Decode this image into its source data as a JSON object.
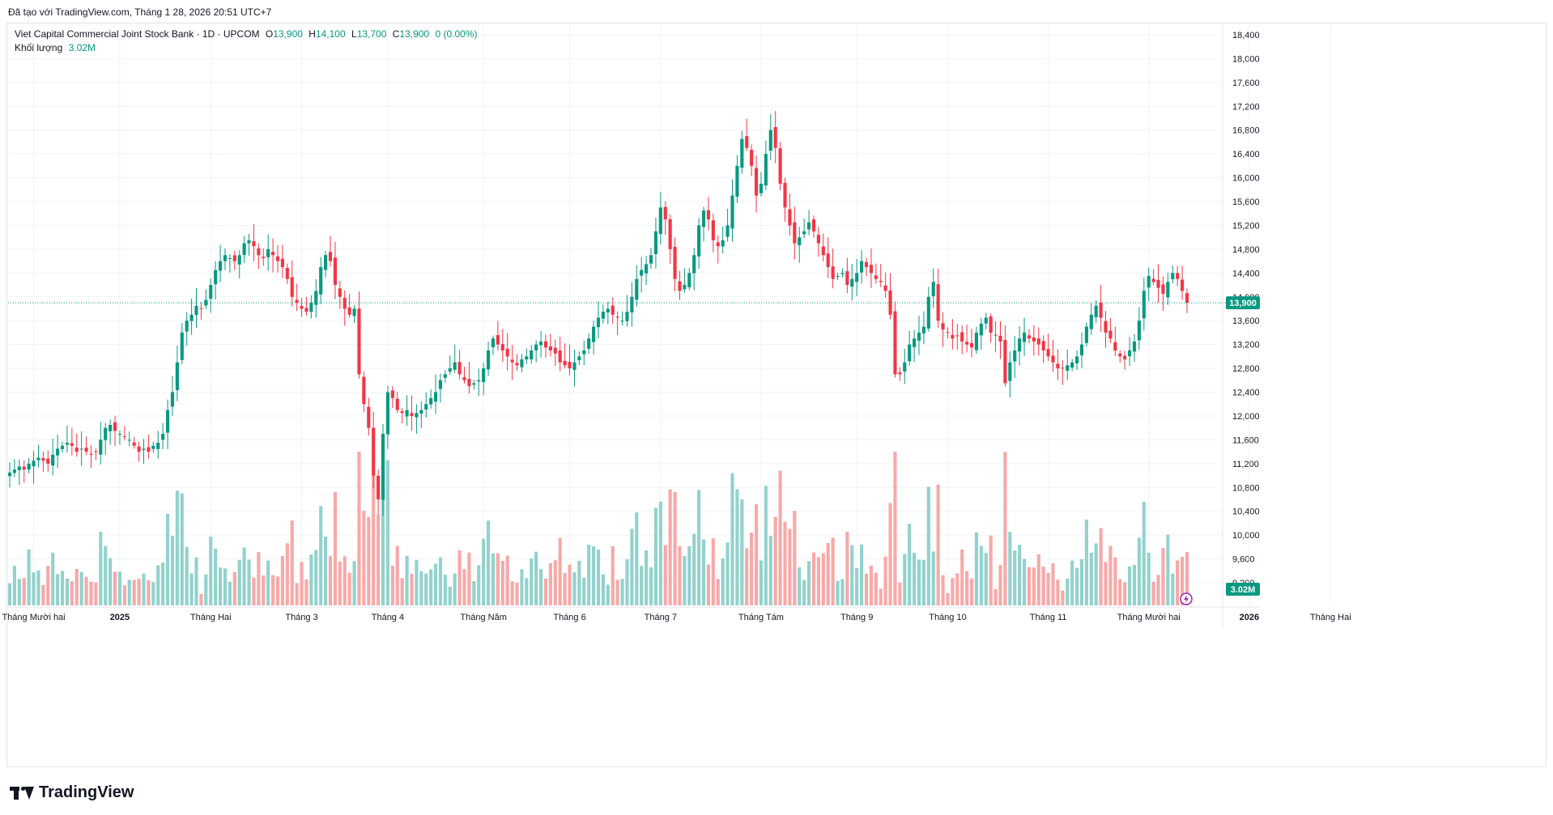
{
  "header": {
    "published_by": "Đã tạo với TradingView.com, Tháng 1 28, 2026 20:51 UTC+7"
  },
  "legend": {
    "symbol_line": "Viet Capital Commercial Joint Stock Bank · 1D · UPCOM",
    "o_label": "O",
    "o_value": "13,900",
    "h_label": "H",
    "h_value": "14,100",
    "l_label": "L",
    "l_value": "13,700",
    "c_label": "C",
    "c_value": "13,900",
    "change": "0 (0.00%)",
    "volume_label": "Khối lượng",
    "volume_value": "3.02M"
  },
  "branding": {
    "name": "TradingView"
  },
  "colors": {
    "up": "#089981",
    "down": "#f23645",
    "up_vol": "#92d2cc",
    "down_vol": "#f7a9a7",
    "grid": "#f0f3fa",
    "text": "#131722"
  },
  "chart_data": {
    "type": "candlestick",
    "title": "Viet Capital Commercial Joint Stock Bank · 1D · UPCOM",
    "last_price": 13900,
    "last_price_label": "13,900",
    "last_volume_label": "3.02M",
    "ylim": [
      9000,
      18600
    ],
    "y_ticks": [
      9200,
      9600,
      10000,
      10400,
      10800,
      11200,
      11600,
      12000,
      12400,
      12800,
      13200,
      13600,
      14000,
      14400,
      14800,
      15200,
      15600,
      16000,
      16400,
      16800,
      17200,
      17600,
      18000,
      18400
    ],
    "y_tick_labels": [
      "9,200",
      "9,600",
      "10,000",
      "10,400",
      "10,800",
      "11,200",
      "11,600",
      "12,000",
      "12,400",
      "12,800",
      "13,200",
      "13,600",
      "14,000",
      "14,400",
      "14,800",
      "15,200",
      "15,600",
      "16,000",
      "16,400",
      "16,800",
      "17,200",
      "17,600",
      "18,000",
      "18,400"
    ],
    "x_labels": [
      {
        "label": "Tháng Mười hai",
        "idx": 5,
        "bold": false
      },
      {
        "label": "2025",
        "idx": 23,
        "bold": true
      },
      {
        "label": "Tháng Hai",
        "idx": 42,
        "bold": false
      },
      {
        "label": "Tháng 3",
        "idx": 61,
        "bold": false
      },
      {
        "label": "Tháng 4",
        "idx": 79,
        "bold": false
      },
      {
        "label": "Tháng Năm",
        "idx": 99,
        "bold": false
      },
      {
        "label": "Tháng 6",
        "idx": 117,
        "bold": false
      },
      {
        "label": "Tháng 7",
        "idx": 136,
        "bold": false
      },
      {
        "label": "Tháng Tám",
        "idx": 157,
        "bold": false
      },
      {
        "label": "Tháng 9",
        "idx": 177,
        "bold": false
      },
      {
        "label": "Tháng 10",
        "idx": 196,
        "bold": false
      },
      {
        "label": "Tháng 11",
        "idx": 217,
        "bold": false
      },
      {
        "label": "Tháng Mười hai",
        "idx": 238,
        "bold": false
      },
      {
        "label": "2026",
        "idx": 259,
        "bold": true
      },
      {
        "label": "Tháng Hai",
        "idx": 276,
        "bold": false
      }
    ],
    "series_close": [
      11050,
      11100,
      11150,
      11100,
      11200,
      11250,
      11300,
      11250,
      11200,
      11350,
      11450,
      11500,
      11550,
      11500,
      11400,
      11450,
      11400,
      11350,
      11400,
      11600,
      11800,
      11850,
      11750,
      11700,
      11650,
      11600,
      11500,
      11400,
      11450,
      11400,
      11500,
      11550,
      11700,
      12100,
      12400,
      12900,
      13400,
      13600,
      13700,
      13850,
      13800,
      13950,
      14200,
      14450,
      14600,
      14700,
      14650,
      14600,
      14700,
      14900,
      14950,
      14850,
      14700,
      14650,
      14800,
      14700,
      14600,
      14500,
      14300,
      14000,
      13900,
      13800,
      13750,
      13900,
      14100,
      14500,
      14700,
      14600,
      14200,
      14000,
      13800,
      13700,
      13800,
      12700,
      12200,
      11800,
      11000,
      10600,
      11700,
      12400,
      12300,
      12100,
      12050,
      12100,
      12000,
      12050,
      12100,
      12200,
      12300,
      12400,
      12600,
      12700,
      12800,
      12900,
      12700,
      12600,
      12500,
      12550,
      12600,
      12800,
      13100,
      13300,
      13200,
      13100,
      13000,
      12900,
      12850,
      12950,
      13000,
      13100,
      13200,
      13250,
      13150,
      13100,
      13050,
      12900,
      12850,
      12800,
      12900,
      13000,
      13100,
      13300,
      13500,
      13650,
      13750,
      13800,
      13700,
      13650,
      13600,
      13750,
      14000,
      14300,
      14450,
      14550,
      14700,
      15100,
      15500,
      15300,
      14800,
      14300,
      14100,
      14200,
      14400,
      14700,
      15200,
      15450,
      15300,
      14950,
      14850,
      14950,
      15200,
      15700,
      16200,
      16650,
      16500,
      16200,
      15700,
      15900,
      16400,
      16800,
      16500,
      15900,
      15500,
      15200,
      14900,
      15000,
      15100,
      15250,
      15100,
      14900,
      14700,
      14500,
      14300,
      14350,
      14400,
      14200,
      14300,
      14400,
      14600,
      14500,
      14400,
      14300,
      14250,
      14100,
      13700,
      12700,
      12700,
      12900,
      13200,
      13300,
      13400,
      13500,
      14000,
      14250,
      13600,
      13450,
      13400,
      13300,
      13350,
      13250,
      13200,
      13150,
      13400,
      13550,
      13650,
      13400,
      13350,
      13250,
      12550,
      12900,
      13100,
      13300,
      13400,
      13300,
      13250,
      13200,
      13100,
      13000,
      12900,
      12800,
      12800,
      12850,
      12900,
      13000,
      13200,
      13500,
      13700,
      13850,
      13650,
      13400,
      13300,
      13100,
      13000,
      12950,
      13100,
      13250,
      13600,
      14100,
      14350,
      14250,
      14150,
      14050,
      14250,
      14400,
      14300,
      14100,
      13900
    ],
    "volume_note": "Volume histogram (bottom pane) in millions of shares per day; latest 3.02M"
  }
}
